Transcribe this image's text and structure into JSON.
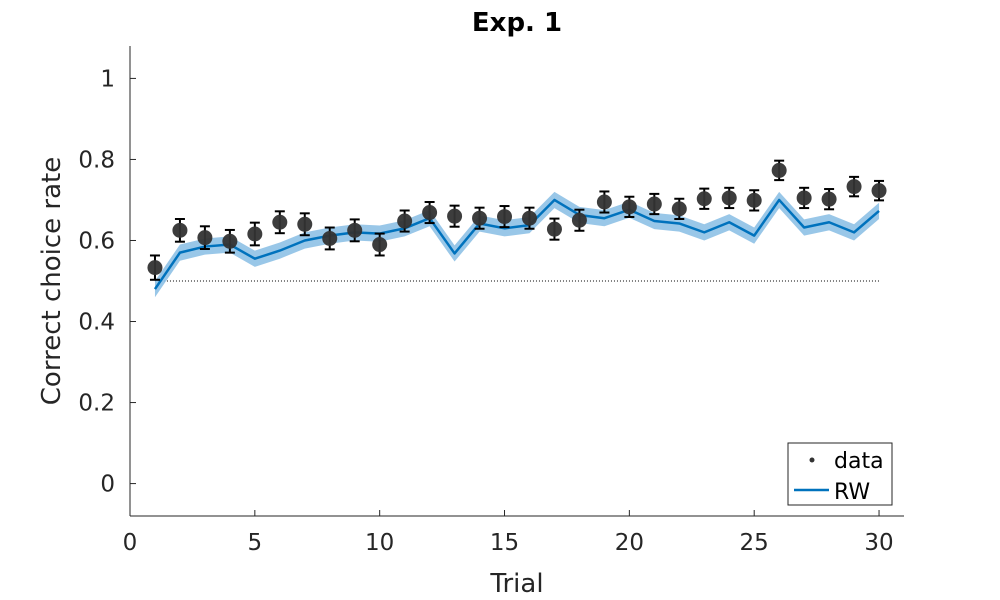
{
  "chart_data": {
    "type": "line",
    "title": "Exp. 1",
    "xlabel": "Trial",
    "ylabel": "Correct choice rate",
    "xlim": [
      0,
      31
    ],
    "ylim": [
      -0.08,
      1.08
    ],
    "xticks": [
      0,
      5,
      10,
      15,
      20,
      25,
      30
    ],
    "xtick_labels": [
      "0",
      "5",
      "10",
      "15",
      "20",
      "25",
      "30"
    ],
    "yticks": [
      0,
      0.2,
      0.4,
      0.6,
      0.8,
      1
    ],
    "ytick_labels": [
      "0",
      "0.2",
      "0.4",
      "0.6",
      "0.8",
      "1"
    ],
    "grid": false,
    "legend_placement": "bottom-right",
    "chance_level": 0.5,
    "series": [
      {
        "name": "data",
        "kind": "scatter_errorbar",
        "color": "#333333",
        "x": [
          1,
          2,
          3,
          4,
          5,
          6,
          7,
          8,
          9,
          10,
          11,
          12,
          13,
          14,
          15,
          16,
          17,
          18,
          19,
          20,
          21,
          22,
          23,
          24,
          25,
          26,
          27,
          28,
          29,
          30
        ],
        "y": [
          0.533,
          0.625,
          0.607,
          0.598,
          0.616,
          0.645,
          0.64,
          0.605,
          0.625,
          0.59,
          0.648,
          0.669,
          0.66,
          0.655,
          0.659,
          0.655,
          0.628,
          0.65,
          0.695,
          0.683,
          0.69,
          0.678,
          0.703,
          0.705,
          0.699,
          0.773,
          0.705,
          0.702,
          0.733,
          0.723
        ],
        "err": [
          0.03,
          0.028,
          0.028,
          0.028,
          0.028,
          0.027,
          0.027,
          0.027,
          0.027,
          0.027,
          0.026,
          0.026,
          0.026,
          0.026,
          0.026,
          0.026,
          0.026,
          0.026,
          0.026,
          0.025,
          0.025,
          0.025,
          0.025,
          0.025,
          0.025,
          0.024,
          0.025,
          0.025,
          0.024,
          0.024
        ]
      },
      {
        "name": "RW",
        "kind": "line_band",
        "color": "#0072BD",
        "band_color": "#8EC1E6",
        "x": [
          1,
          2,
          3,
          4,
          5,
          6,
          7,
          8,
          9,
          10,
          11,
          12,
          13,
          14,
          15,
          16,
          17,
          18,
          19,
          20,
          21,
          22,
          23,
          24,
          25,
          26,
          27,
          28,
          29,
          30
        ],
        "y": [
          0.48,
          0.57,
          0.585,
          0.59,
          0.555,
          0.575,
          0.6,
          0.612,
          0.62,
          0.617,
          0.63,
          0.655,
          0.568,
          0.642,
          0.63,
          0.638,
          0.7,
          0.663,
          0.655,
          0.676,
          0.648,
          0.642,
          0.62,
          0.645,
          0.612,
          0.7,
          0.632,
          0.645,
          0.62,
          0.673
        ],
        "band": [
          0.02,
          0.02,
          0.02,
          0.02,
          0.02,
          0.02,
          0.02,
          0.02,
          0.02,
          0.02,
          0.02,
          0.02,
          0.02,
          0.02,
          0.02,
          0.02,
          0.02,
          0.02,
          0.02,
          0.02,
          0.02,
          0.02,
          0.02,
          0.02,
          0.02,
          0.02,
          0.02,
          0.02,
          0.02,
          0.02
        ]
      }
    ]
  }
}
